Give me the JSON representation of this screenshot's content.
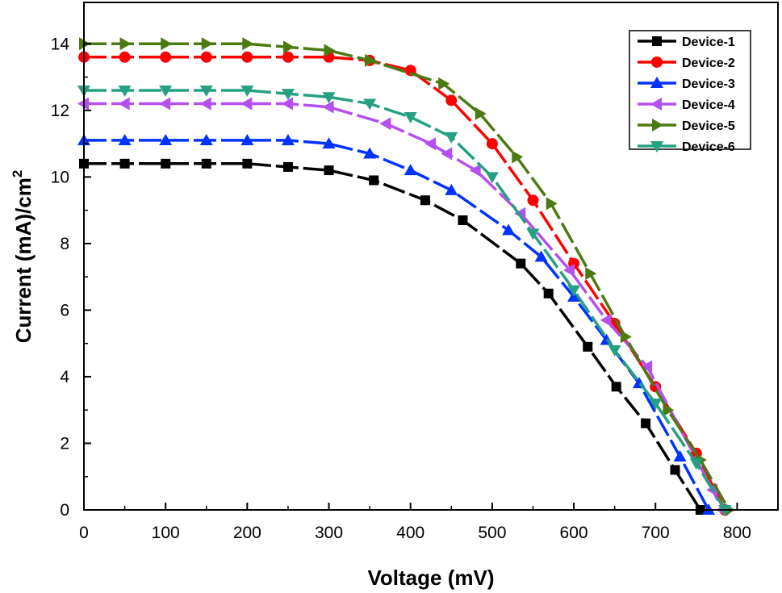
{
  "chart_data": {
    "type": "line",
    "xlabel": "Voltage (mV)",
    "ylabel": "Current (mA)/cm",
    "ylabel_superscript": "2",
    "xlim": [
      0,
      850
    ],
    "ylim": [
      0,
      15
    ],
    "x_ticks": [
      0,
      100,
      200,
      300,
      400,
      500,
      600,
      700,
      800
    ],
    "y_ticks": [
      0,
      2,
      4,
      6,
      8,
      10,
      12,
      14
    ],
    "grid": false,
    "legend_position": "top-right",
    "series": [
      {
        "name": "Device-1",
        "color": "#000000",
        "marker": "square",
        "x": [
          0,
          50,
          100,
          150,
          200,
          250,
          300,
          355,
          418,
          464,
          535,
          569,
          617,
          652,
          688,
          724,
          755
        ],
        "y": [
          10.4,
          10.4,
          10.4,
          10.4,
          10.4,
          10.3,
          10.2,
          9.9,
          9.3,
          8.7,
          7.4,
          6.5,
          4.9,
          3.7,
          2.6,
          1.2,
          0
        ]
      },
      {
        "name": "Device-2",
        "color": "#ff0000",
        "marker": "circle",
        "x": [
          0,
          50,
          100,
          150,
          200,
          250,
          300,
          350,
          400,
          450,
          500,
          550,
          600,
          650,
          700,
          750,
          785
        ],
        "y": [
          13.6,
          13.6,
          13.6,
          13.6,
          13.6,
          13.6,
          13.6,
          13.5,
          13.2,
          12.3,
          11.0,
          9.3,
          7.4,
          5.6,
          3.7,
          1.7,
          0
        ]
      },
      {
        "name": "Device-3",
        "color": "#0033ff",
        "marker": "triangle-up",
        "x": [
          0,
          50,
          100,
          150,
          200,
          250,
          300,
          350,
          400,
          450,
          520,
          560,
          600,
          640,
          680,
          730,
          765
        ],
        "y": [
          11.1,
          11.1,
          11.1,
          11.1,
          11.1,
          11.1,
          11.0,
          10.7,
          10.2,
          9.6,
          8.4,
          7.6,
          6.4,
          5.1,
          3.8,
          1.6,
          0
        ]
      },
      {
        "name": "Device-4",
        "color": "#b44ff0",
        "marker": "triangle-left",
        "x": [
          0,
          50,
          100,
          150,
          200,
          250,
          300,
          370,
          425,
          445,
          480,
          535,
          595,
          640,
          690,
          770,
          782
        ],
        "y": [
          12.2,
          12.2,
          12.2,
          12.2,
          12.2,
          12.2,
          12.1,
          11.6,
          11.0,
          10.7,
          10.2,
          8.9,
          7.2,
          5.7,
          4.3,
          0.6,
          0
        ]
      },
      {
        "name": "Device-5",
        "color": "#4b7a12",
        "marker": "triangle-right",
        "x": [
          0,
          50,
          100,
          150,
          200,
          250,
          300,
          350,
          440,
          485,
          530,
          572,
          620,
          663,
          715,
          755,
          790
        ],
        "y": [
          14.0,
          14.0,
          14.0,
          14.0,
          14.0,
          13.9,
          13.8,
          13.5,
          12.8,
          11.9,
          10.6,
          9.2,
          7.1,
          5.2,
          3.0,
          1.5,
          0
        ]
      },
      {
        "name": "Device-6",
        "color": "#26a082",
        "marker": "triangle-down",
        "x": [
          0,
          50,
          100,
          150,
          200,
          250,
          300,
          350,
          400,
          450,
          500,
          550,
          600,
          650,
          700,
          750,
          785
        ],
        "y": [
          12.6,
          12.6,
          12.6,
          12.6,
          12.6,
          12.5,
          12.4,
          12.2,
          11.8,
          11.2,
          10.0,
          8.3,
          6.6,
          4.8,
          3.2,
          1.4,
          0
        ]
      }
    ]
  }
}
